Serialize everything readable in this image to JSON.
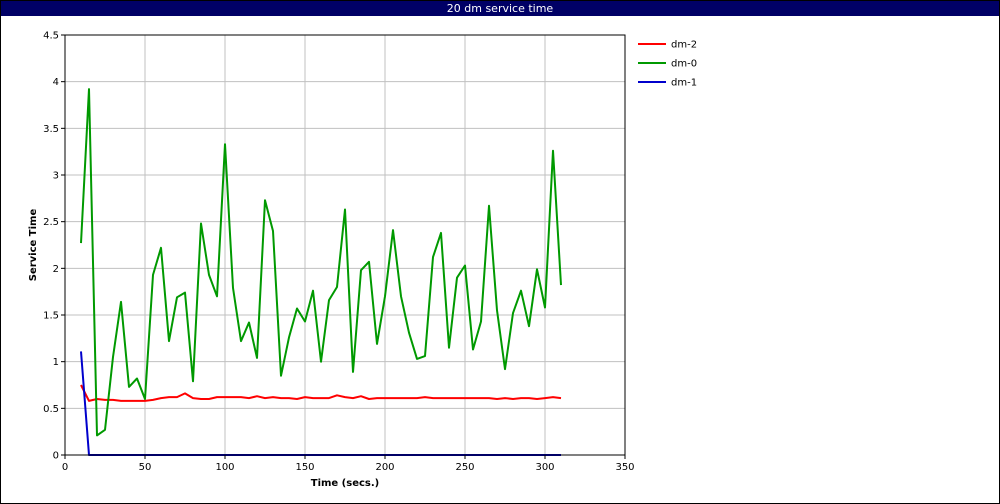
{
  "window": {
    "title": "20 dm service time"
  },
  "chart_data": {
    "type": "line",
    "title": "20 dm service time",
    "xlabel": "Time (secs.)",
    "ylabel": "Service Time",
    "xlim": [
      0,
      350
    ],
    "ylim": [
      0,
      4.5
    ],
    "x_ticks": [
      0,
      50,
      100,
      150,
      200,
      250,
      300,
      350
    ],
    "y_ticks": [
      0,
      0.5,
      1,
      1.5,
      2,
      2.5,
      3,
      3.5,
      4,
      4.5
    ],
    "grid": true,
    "legend_position": "right",
    "series": [
      {
        "name": "dm-2",
        "color": "#ff0000",
        "x": [
          10,
          15,
          20,
          25,
          30,
          35,
          40,
          45,
          50,
          55,
          60,
          65,
          70,
          75,
          80,
          85,
          90,
          95,
          100,
          105,
          110,
          115,
          120,
          125,
          130,
          135,
          140,
          145,
          150,
          155,
          160,
          165,
          170,
          175,
          180,
          185,
          190,
          195,
          200,
          205,
          210,
          215,
          220,
          225,
          230,
          235,
          240,
          245,
          250,
          255,
          260,
          265,
          270,
          275,
          280,
          285,
          290,
          295,
          300,
          305,
          310
        ],
        "y": [
          0.75,
          0.58,
          0.6,
          0.59,
          0.59,
          0.58,
          0.58,
          0.58,
          0.58,
          0.59,
          0.61,
          0.62,
          0.62,
          0.66,
          0.61,
          0.6,
          0.6,
          0.62,
          0.62,
          0.62,
          0.62,
          0.61,
          0.63,
          0.61,
          0.62,
          0.61,
          0.61,
          0.6,
          0.62,
          0.61,
          0.61,
          0.61,
          0.64,
          0.62,
          0.61,
          0.63,
          0.6,
          0.61,
          0.61,
          0.61,
          0.61,
          0.61,
          0.61,
          0.62,
          0.61,
          0.61,
          0.61,
          0.61,
          0.61,
          0.61,
          0.61,
          0.61,
          0.6,
          0.61,
          0.6,
          0.61,
          0.61,
          0.6,
          0.61,
          0.62,
          0.61
        ]
      },
      {
        "name": "dm-0",
        "color": "#009900",
        "x": [
          10,
          15,
          20,
          25,
          30,
          35,
          40,
          45,
          50,
          55,
          60,
          65,
          70,
          75,
          80,
          85,
          90,
          95,
          100,
          105,
          110,
          115,
          120,
          125,
          130,
          135,
          140,
          145,
          150,
          155,
          160,
          165,
          170,
          175,
          180,
          185,
          190,
          195,
          200,
          205,
          210,
          215,
          220,
          225,
          230,
          235,
          240,
          245,
          250,
          255,
          260,
          265,
          270,
          275,
          280,
          285,
          290,
          295,
          300,
          305,
          310
        ],
        "y": [
          2.27,
          3.92,
          0.21,
          0.27,
          1.05,
          1.64,
          0.73,
          0.82,
          0.6,
          1.93,
          2.22,
          1.22,
          1.69,
          1.74,
          0.79,
          2.48,
          1.93,
          1.7,
          3.33,
          1.79,
          1.22,
          1.42,
          1.04,
          2.73,
          2.4,
          0.85,
          1.26,
          1.57,
          1.43,
          1.76,
          1.0,
          1.66,
          1.8,
          2.63,
          0.89,
          1.98,
          2.07,
          1.19,
          1.7,
          2.41,
          1.7,
          1.31,
          1.03,
          1.06,
          2.12,
          2.38,
          1.15,
          1.9,
          2.03,
          1.13,
          1.43,
          2.67,
          1.55,
          0.92,
          1.52,
          1.76,
          1.38,
          1.99,
          1.58,
          3.26,
          1.82
        ]
      },
      {
        "name": "dm-1",
        "color": "#0000cc",
        "x": [
          10,
          15,
          20,
          25,
          30,
          35,
          40,
          45,
          50,
          55,
          60,
          65,
          70,
          75,
          80,
          85,
          90,
          95,
          100,
          105,
          110,
          115,
          120,
          125,
          130,
          135,
          140,
          145,
          150,
          155,
          160,
          165,
          170,
          175,
          180,
          185,
          190,
          195,
          200,
          205,
          210,
          215,
          220,
          225,
          230,
          235,
          240,
          245,
          250,
          255,
          260,
          265,
          270,
          275,
          280,
          285,
          290,
          295,
          300,
          305,
          310
        ],
        "y": [
          1.11,
          0,
          0,
          0,
          0,
          0,
          0,
          0,
          0,
          0,
          0,
          0,
          0,
          0,
          0,
          0,
          0,
          0,
          0,
          0,
          0,
          0,
          0,
          0,
          0,
          0,
          0,
          0,
          0,
          0,
          0,
          0,
          0,
          0,
          0,
          0,
          0,
          0,
          0,
          0,
          0,
          0,
          0,
          0,
          0,
          0,
          0,
          0,
          0,
          0,
          0,
          0,
          0,
          0,
          0,
          0,
          0,
          0,
          0,
          0,
          0
        ]
      }
    ],
    "legend_order": [
      "dm-2",
      "dm-0",
      "dm-1"
    ]
  }
}
